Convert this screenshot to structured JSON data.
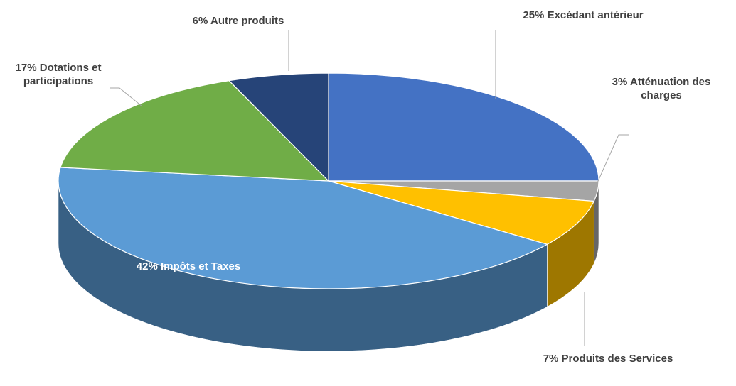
{
  "chart_data": {
    "type": "pie",
    "categories": [
      "Excédant antérieur",
      "Atténuation des charges",
      "Produits des Services",
      "Impôts et Taxes",
      "Dotations et participations",
      "Autre produits"
    ],
    "values": [
      25,
      3,
      7,
      42,
      17,
      6
    ],
    "value_labels": [
      "25%",
      "3%",
      "7%",
      "42%",
      "17%",
      "6%"
    ],
    "colors": [
      "#4472c4",
      "#a5a5a5",
      "#ffc000",
      "#5b9bd5",
      "#70ad47",
      "#264478"
    ]
  }
}
